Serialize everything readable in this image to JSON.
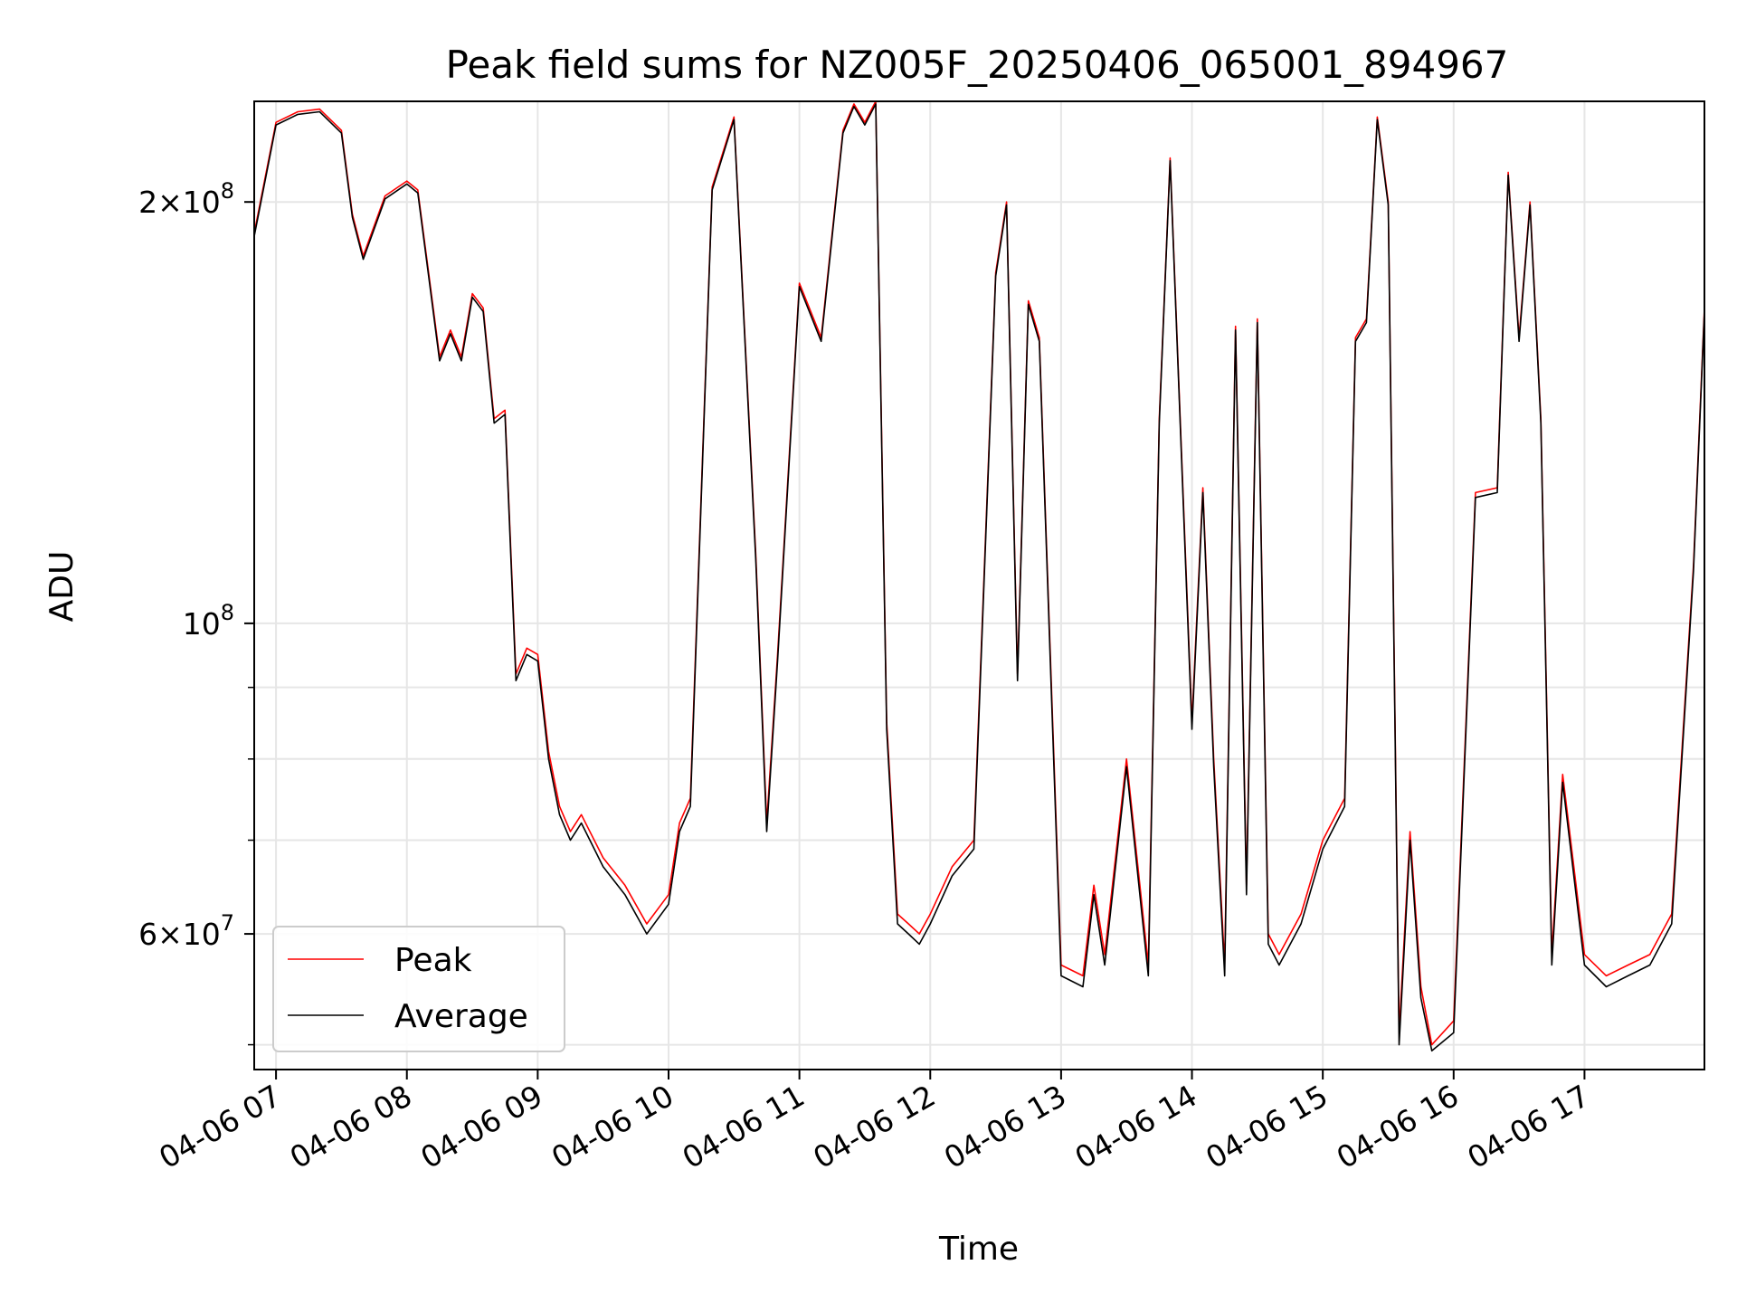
{
  "chart_data": {
    "type": "line",
    "title": "Peak field sums for NZ005F_20250406_065001_894967",
    "xlabel": "Time",
    "ylabel": "ADU",
    "yscale": "log",
    "ylim": [
      48000000,
      236000000
    ],
    "xlim": [
      "04-06 06:50",
      "04-06 17:55"
    ],
    "grid": true,
    "legend_position": "lower-left",
    "x_ticks": [
      "04-06 07",
      "04-06 08",
      "04-06 09",
      "04-06 10",
      "04-06 11",
      "04-06 12",
      "04-06 13",
      "04-06 14",
      "04-06 15",
      "04-06 16",
      "04-06 17"
    ],
    "y_ticks": [
      {
        "value": 60000000,
        "base": "6×10",
        "exp": "7"
      },
      {
        "value": 100000000,
        "base": "10",
        "exp": "8"
      },
      {
        "value": 200000000,
        "base": "2×10",
        "exp": "8"
      }
    ],
    "x": [
      "06:50",
      "07:00",
      "07:10",
      "07:20",
      "07:30",
      "07:35",
      "07:40",
      "07:50",
      "08:00",
      "08:05",
      "08:10",
      "08:15",
      "08:20",
      "08:25",
      "08:30",
      "08:35",
      "08:40",
      "08:45",
      "08:50",
      "08:55",
      "09:00",
      "09:05",
      "09:10",
      "09:15",
      "09:20",
      "09:30",
      "09:40",
      "09:50",
      "10:00",
      "10:05",
      "10:10",
      "10:20",
      "10:30",
      "10:40",
      "10:45",
      "10:50",
      "11:00",
      "11:10",
      "11:20",
      "11:25",
      "11:30",
      "11:35",
      "11:40",
      "11:45",
      "11:50",
      "11:55",
      "12:00",
      "12:10",
      "12:20",
      "12:30",
      "12:35",
      "12:40",
      "12:45",
      "12:50",
      "13:00",
      "13:10",
      "13:15",
      "13:20",
      "13:30",
      "13:40",
      "13:45",
      "13:50",
      "14:00",
      "14:05",
      "14:10",
      "14:15",
      "14:20",
      "14:25",
      "14:30",
      "14:35",
      "14:40",
      "14:50",
      "15:00",
      "15:10",
      "15:15",
      "15:20",
      "15:25",
      "15:30",
      "15:35",
      "15:40",
      "15:45",
      "15:50",
      "16:00",
      "16:10",
      "16:20",
      "16:25",
      "16:30",
      "16:35",
      "16:40",
      "16:45",
      "16:50",
      "17:00",
      "17:10",
      "17:20",
      "17:30",
      "17:40",
      "17:50",
      "17:55"
    ],
    "series": [
      {
        "name": "Peak",
        "color": "#ff0000",
        "values": [
          190000000,
          228000000,
          232000000,
          233000000,
          225000000,
          196000000,
          183000000,
          202000000,
          207000000,
          204000000,
          178000000,
          155000000,
          162000000,
          155000000,
          172000000,
          168000000,
          140000000,
          142000000,
          92000000,
          96000000,
          95000000,
          81000000,
          74000000,
          71000000,
          73000000,
          68000000,
          65000000,
          61000000,
          64000000,
          72000000,
          75000000,
          205000000,
          230000000,
          112000000,
          72000000,
          95000000,
          175000000,
          160000000,
          225000000,
          235000000,
          228000000,
          236000000,
          85000000,
          62000000,
          61000000,
          60000000,
          62000000,
          67000000,
          70000000,
          178000000,
          200000000,
          92000000,
          170000000,
          160000000,
          57000000,
          56000000,
          65000000,
          58000000,
          80000000,
          57000000,
          140000000,
          215000000,
          85000000,
          125000000,
          80000000,
          57000000,
          163000000,
          65000000,
          165000000,
          60000000,
          58000000,
          62000000,
          70000000,
          75000000,
          160000000,
          165000000,
          230000000,
          200000000,
          51000000,
          71000000,
          55000000,
          50000000,
          52000000,
          124000000,
          125000000,
          210000000,
          160000000,
          200000000,
          140000000,
          58000000,
          78000000,
          58000000,
          56000000,
          57000000,
          58000000,
          62000000,
          110000000,
          168000000
        ]
      },
      {
        "name": "Average",
        "color": "#000000",
        "values": [
          189000000,
          227000000,
          231000000,
          232000000,
          224000000,
          195000000,
          182000000,
          201000000,
          206000000,
          203000000,
          177000000,
          154000000,
          161000000,
          154000000,
          171000000,
          167000000,
          139000000,
          141000000,
          91000000,
          95000000,
          94000000,
          80000000,
          73000000,
          70000000,
          72000000,
          67000000,
          64000000,
          60000000,
          63000000,
          71000000,
          74000000,
          204000000,
          229000000,
          111000000,
          71000000,
          94000000,
          174000000,
          159000000,
          224000000,
          234000000,
          227000000,
          235000000,
          84000000,
          61000000,
          60000000,
          59000000,
          61000000,
          66000000,
          69000000,
          177000000,
          199000000,
          91000000,
          169000000,
          159000000,
          56000000,
          55000000,
          64000000,
          57000000,
          79000000,
          56000000,
          139000000,
          214000000,
          84000000,
          124000000,
          79000000,
          56000000,
          162000000,
          64000000,
          164000000,
          59000000,
          57000000,
          61000000,
          69000000,
          74000000,
          159000000,
          164000000,
          229000000,
          199000000,
          50000000,
          70000000,
          54000000,
          49500000,
          51000000,
          123000000,
          124000000,
          209000000,
          159000000,
          199000000,
          139000000,
          57000000,
          77000000,
          57000000,
          55000000,
          56000000,
          57000000,
          61000000,
          109000000,
          167000000
        ]
      }
    ]
  }
}
